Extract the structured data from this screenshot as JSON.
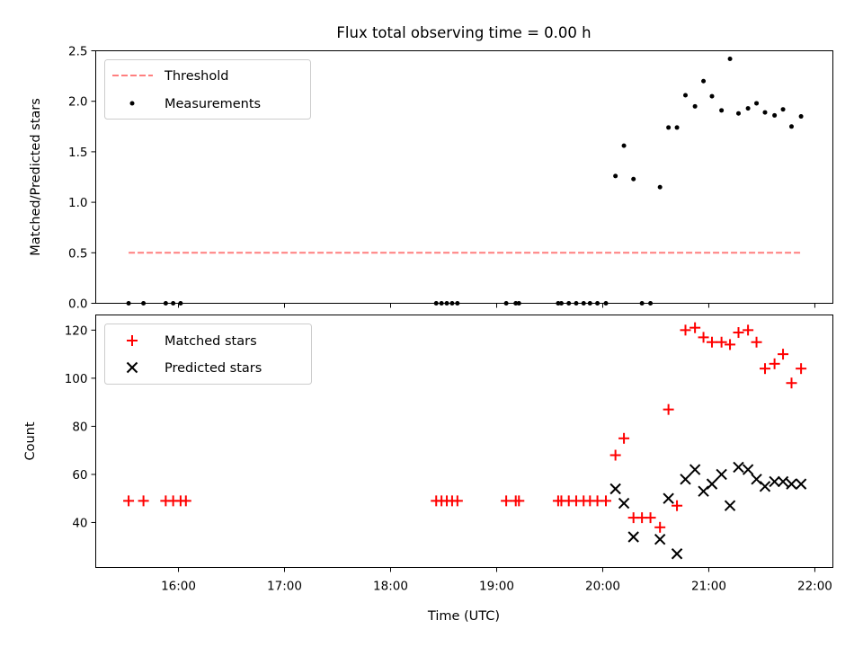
{
  "chart_data": [
    {
      "type": "scatter",
      "title": "Flux total observing time = 0.00 h",
      "ylabel": "Matched/Predicted stars",
      "ylim": [
        0,
        2.5
      ],
      "yticks": [
        "0.0",
        "0.5",
        "1.0",
        "1.5",
        "2.0",
        "2.5"
      ],
      "xlim_hours": [
        15.22,
        22.17
      ],
      "legend_position": "top-left",
      "threshold": {
        "name": "Threshold",
        "value": 0.5,
        "x_start": 15.53,
        "x_end": 21.87,
        "color": "#ff7f7f",
        "style": "dashed"
      },
      "series": [
        {
          "name": "Measurements",
          "color": "#000000",
          "marker": "dot",
          "x": [
            15.53,
            15.67,
            15.88,
            15.95,
            16.02,
            18.43,
            18.48,
            18.53,
            18.58,
            18.63,
            19.09,
            19.18,
            19.21,
            19.58,
            19.61,
            19.68,
            19.75,
            19.82,
            19.88,
            19.95,
            20.03,
            20.12,
            20.2,
            20.29,
            20.37,
            20.45,
            20.54,
            20.62,
            20.7,
            20.78,
            20.87,
            20.95,
            21.03,
            21.12,
            21.2,
            21.28,
            21.37,
            21.45,
            21.53,
            21.62,
            21.7,
            21.78,
            21.87
          ],
          "y": [
            0,
            0,
            0,
            0,
            0,
            0,
            0,
            0,
            0,
            0,
            0,
            0,
            0,
            0,
            0,
            0,
            0,
            0,
            0,
            0,
            0,
            1.26,
            1.56,
            1.23,
            0,
            0,
            1.15,
            1.74,
            1.74,
            2.06,
            1.95,
            2.2,
            2.05,
            1.91,
            2.42,
            1.88,
            1.93,
            1.98,
            1.89,
            1.86,
            1.92,
            1.75,
            1.85
          ]
        }
      ]
    },
    {
      "type": "scatter",
      "xlabel": "Time (UTC)",
      "ylabel": "Count",
      "ylim": [
        21.3,
        126.3
      ],
      "yticks": [
        "40",
        "60",
        "80",
        "100",
        "120"
      ],
      "xlim_hours": [
        15.22,
        22.17
      ],
      "xticks": [
        "16:00",
        "17:00",
        "18:00",
        "19:00",
        "20:00",
        "21:00",
        "22:00"
      ],
      "legend_position": "top-left",
      "series": [
        {
          "name": "Matched stars",
          "color": "#ff0000",
          "marker": "plus",
          "x": [
            15.53,
            15.67,
            15.88,
            15.95,
            16.02,
            16.07,
            18.43,
            18.48,
            18.53,
            18.58,
            18.63,
            19.09,
            19.18,
            19.21,
            19.58,
            19.61,
            19.68,
            19.75,
            19.82,
            19.88,
            19.95,
            20.03,
            20.12,
            20.2,
            20.29,
            20.37,
            20.45,
            20.54,
            20.62,
            20.7,
            20.78,
            20.87,
            20.95,
            21.03,
            21.12,
            21.2,
            21.28,
            21.37,
            21.45,
            21.53,
            21.62,
            21.7,
            21.78,
            21.87
          ],
          "y": [
            49,
            49,
            49,
            49,
            49,
            49,
            49,
            49,
            49,
            49,
            49,
            49,
            49,
            49,
            49,
            49,
            49,
            49,
            49,
            49,
            49,
            49,
            68,
            75,
            42,
            42,
            42,
            38,
            87,
            47,
            120,
            121,
            117,
            115,
            115,
            114,
            119,
            120,
            115,
            104,
            106,
            110,
            98,
            104
          ]
        },
        {
          "name": "Predicted stars",
          "color": "#000000",
          "marker": "x",
          "x": [
            20.12,
            20.2,
            20.29,
            20.54,
            20.62,
            20.7,
            20.78,
            20.87,
            20.95,
            21.03,
            21.12,
            21.2,
            21.28,
            21.37,
            21.45,
            21.53,
            21.62,
            21.7,
            21.78,
            21.87
          ],
          "y": [
            54,
            48,
            34,
            33,
            50,
            27,
            58,
            62,
            53,
            56,
            60,
            47,
            63,
            62,
            58,
            55,
            57,
            57,
            56,
            56
          ]
        }
      ]
    }
  ]
}
